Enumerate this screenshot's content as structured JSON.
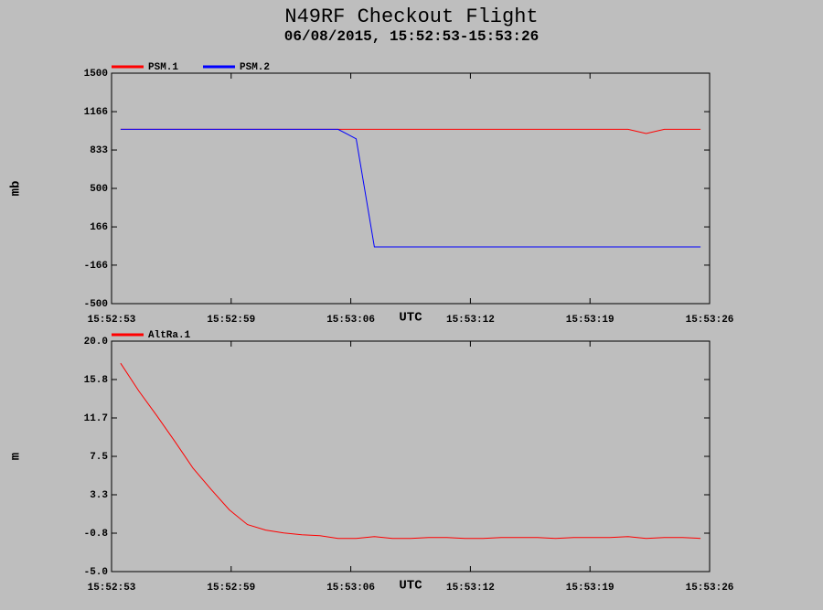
{
  "title": "N49RF Checkout Flight",
  "subtitle": "06/08/2015, 15:52:53-15:53:26",
  "chart_data": [
    {
      "type": "line",
      "xlabel": "UTC",
      "ylabel": "mb",
      "x": [
        "15:52:53.5",
        "15:52:54.5",
        "15:52:55.5",
        "15:52:56.5",
        "15:52:57.5",
        "15:52:58.5",
        "15:52:59.5",
        "15:53:00.5",
        "15:53:01.5",
        "15:53:02.5",
        "15:53:03.5",
        "15:53:04.5",
        "15:53:05.5",
        "15:53:06.5",
        "15:53:07.5",
        "15:53:08.5",
        "15:53:09.5",
        "15:53:10.5",
        "15:53:11.5",
        "15:53:12.5",
        "15:53:13.5",
        "15:53:14.5",
        "15:53:15.5",
        "15:53:16.5",
        "15:53:17.5",
        "15:53:18.5",
        "15:53:19.5",
        "15:53:20.5",
        "15:53:21.5",
        "15:53:22.5",
        "15:53:23.5",
        "15:53:24.5",
        "15:53:25.5"
      ],
      "xlim": [
        "15:52:53",
        "15:53:26"
      ],
      "xticks": [
        "15:52:53",
        {
          "value": "15:52:59.6",
          "label": "15:52:59"
        },
        {
          "value": "15:53:06.2",
          "label": "15:53:06"
        },
        {
          "value": "15:53:12.8",
          "label": "15:53:12"
        },
        {
          "value": "15:53:19.4",
          "label": "15:53:19"
        },
        "15:53:26"
      ],
      "ylim": [
        -500,
        1500
      ],
      "yticks": [
        -500,
        -166,
        166,
        500,
        833,
        1166,
        1500
      ],
      "series": [
        {
          "name": "PSM.1",
          "color": "#ff0000",
          "values": [
            1013,
            1013,
            1013,
            1013,
            1013,
            1013,
            1013,
            1013,
            1013,
            1013,
            1013,
            1013,
            1013,
            1013,
            1013,
            1013,
            1013,
            1013,
            1013,
            1013,
            1013,
            1013,
            1013,
            1013,
            1013,
            1013,
            1013,
            1013,
            1013,
            976,
            1013,
            1013,
            1013
          ]
        },
        {
          "name": "PSM.2",
          "color": "#0000ff",
          "values": [
            1013,
            1013,
            1013,
            1013,
            1013,
            1013,
            1013,
            1013,
            1013,
            1013,
            1013,
            1013,
            1013,
            930,
            -8,
            -8,
            -8,
            -8,
            -8,
            -8,
            -8,
            -8,
            -8,
            -8,
            -8,
            -8,
            -8,
            -8,
            -8,
            -8,
            -8,
            -8,
            -8
          ]
        }
      ]
    },
    {
      "type": "line",
      "xlabel": "UTC",
      "ylabel": "m",
      "x": [
        "15:52:53.5",
        "15:52:54.5",
        "15:52:55.5",
        "15:52:56.5",
        "15:52:57.5",
        "15:52:58.5",
        "15:52:59.5",
        "15:53:00.5",
        "15:53:01.5",
        "15:53:02.5",
        "15:53:03.5",
        "15:53:04.5",
        "15:53:05.5",
        "15:53:06.5",
        "15:53:07.5",
        "15:53:08.5",
        "15:53:09.5",
        "15:53:10.5",
        "15:53:11.5",
        "15:53:12.5",
        "15:53:13.5",
        "15:53:14.5",
        "15:53:15.5",
        "15:53:16.5",
        "15:53:17.5",
        "15:53:18.5",
        "15:53:19.5",
        "15:53:20.5",
        "15:53:21.5",
        "15:53:22.5",
        "15:53:23.5",
        "15:53:24.5",
        "15:53:25.5"
      ],
      "xlim": [
        "15:52:53",
        "15:53:26"
      ],
      "xticks": [
        "15:52:53",
        {
          "value": "15:52:59.6",
          "label": "15:52:59"
        },
        {
          "value": "15:53:06.2",
          "label": "15:53:06"
        },
        {
          "value": "15:53:12.8",
          "label": "15:53:12"
        },
        {
          "value": "15:53:19.4",
          "label": "15:53:19"
        },
        "15:53:26"
      ],
      "ylim": [
        -5,
        20
      ],
      "yticks": [
        {
          "value": -5,
          "label": "-5.0"
        },
        {
          "value": -0.833,
          "label": "-0.8"
        },
        {
          "value": 3.333,
          "label": "3.3"
        },
        7.5,
        {
          "value": 11.667,
          "label": "11.7"
        },
        {
          "value": 15.833,
          "label": "15.8"
        },
        {
          "value": 20,
          "label": "20.0"
        }
      ],
      "series": [
        {
          "name": "AltRa.1",
          "color": "#ff0000",
          "values": [
            17.6,
            14.6,
            11.9,
            9.1,
            6.2,
            3.9,
            1.7,
            0.1,
            -0.5,
            -0.8,
            -1.0,
            -1.1,
            -1.4,
            -1.4,
            -1.2,
            -1.4,
            -1.4,
            -1.3,
            -1.3,
            -1.4,
            -1.4,
            -1.3,
            -1.3,
            -1.3,
            -1.4,
            -1.3,
            -1.3,
            -1.3,
            -1.2,
            -1.4,
            -1.3,
            -1.3,
            -1.4
          ]
        }
      ]
    }
  ]
}
